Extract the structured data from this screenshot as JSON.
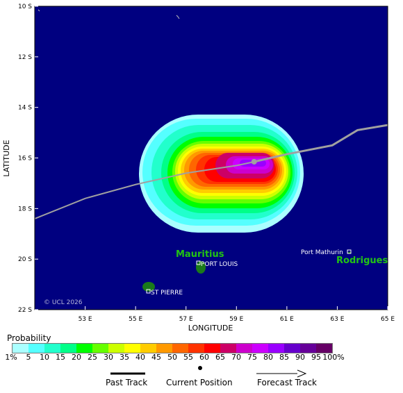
{
  "axes": {
    "xlabel": "LONGITUDE",
    "ylabel": "LATITUDE",
    "xticks": [
      "53 E",
      "55 E",
      "57 E",
      "59 E",
      "61 E",
      "63 E",
      "65 E"
    ],
    "yticks": [
      "10 S",
      "12 S",
      "14 S",
      "16 S",
      "18 S",
      "20 S",
      "22 S"
    ],
    "lon_range": [
      51,
      65
    ],
    "lat_range": [
      -10,
      -22
    ]
  },
  "places": {
    "mauritius": "Mauritius",
    "port_louis": "PORT LOUIS",
    "st_pierre": "ST PIERRE",
    "port_mathurin": "Port Mathurin",
    "rodrigues": "Rodrigues"
  },
  "copyright": "© UCL 2026",
  "track": {
    "past": [
      [
        51.0,
        -18.4
      ],
      [
        53.0,
        -17.6
      ],
      [
        55.0,
        -17.05
      ],
      [
        57.0,
        -16.6
      ],
      [
        59.0,
        -16.3
      ],
      [
        59.7,
        -16.15
      ]
    ],
    "current": [
      59.7,
      -16.15
    ],
    "forecast": [
      [
        59.7,
        -16.15
      ],
      [
        61.0,
        -15.85
      ],
      [
        62.8,
        -15.5
      ],
      [
        63.8,
        -14.9
      ],
      [
        65.0,
        -14.7
      ]
    ]
  },
  "legend": {
    "title": "Probability",
    "labels": [
      "1%",
      "5",
      "10",
      "15",
      "20",
      "25",
      "30",
      "35",
      "40",
      "45",
      "50",
      "55",
      "60",
      "65",
      "70",
      "75",
      "80",
      "85",
      "90",
      "95",
      "100%"
    ],
    "colors": [
      "#aaffff",
      "#55ffff",
      "#22ffcc",
      "#00ff88",
      "#00ff00",
      "#66ff00",
      "#ccff00",
      "#ffff00",
      "#ffcc00",
      "#ff9900",
      "#ff6600",
      "#ff3300",
      "#ff0000",
      "#cc0066",
      "#cc00cc",
      "#cc00ff",
      "#9900ff",
      "#6600cc",
      "#660099",
      "#660066"
    ]
  },
  "key": {
    "past": "Past Track",
    "current": "Current Position",
    "forecast": "Forecast Track"
  },
  "colors": {
    "ocean": "#000080",
    "land": "#1a7a1a",
    "track": "#a0a0a0"
  }
}
